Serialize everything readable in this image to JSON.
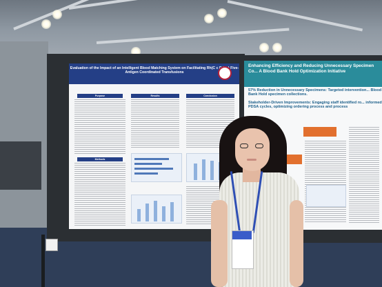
{
  "poster_left": {
    "title": "Evaluation of the Impact of an Intelligent Blood Matching System on Facilitating Rh(C c D E e) Five-Antigen Coordinated Transfusions",
    "sections": [
      "Purpose",
      "Results",
      "Conclusion",
      "Methods"
    ]
  },
  "poster_right": {
    "title": "Enhancing Efficiency and Reducing Unnecessary Specimen Co... A Blood Bank Hold Optimization Initiative",
    "bullet_1": "57% Reduction in Unnecessary Specimens: Targeted intervention... Blood Bank Hold specimen collections.",
    "bullet_2": "Stakeholder-Driven Improvements: Engaging staff identified ro... informed PDSA cycles, optimizing ordering process and process"
  },
  "colors": {
    "poster_header_blue": "#243f86",
    "poster_right_teal": "#2a8c9b",
    "lanyard_blue": "#2f4fb4"
  }
}
